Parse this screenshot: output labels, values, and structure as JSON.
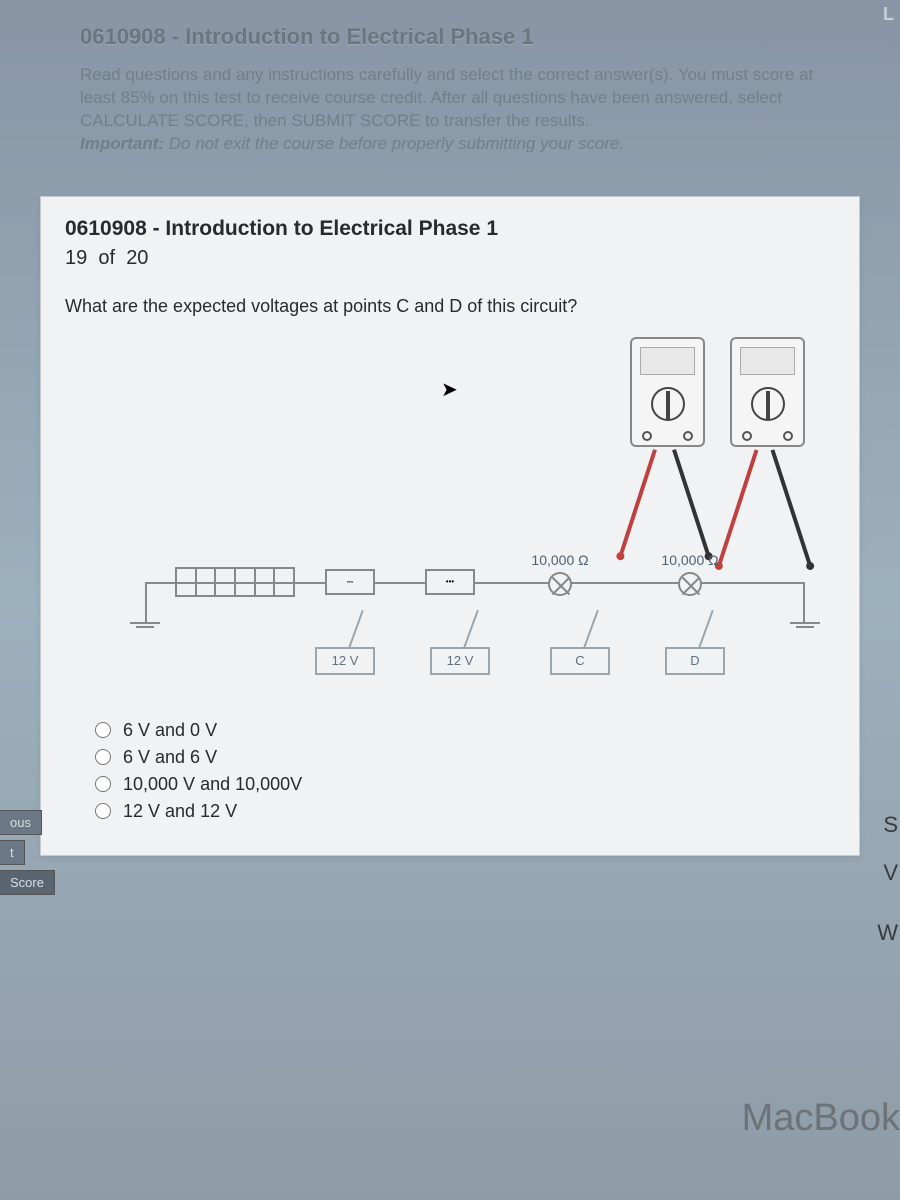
{
  "header": {
    "page_title": "0610908 - Introduction to Electrical Phase 1",
    "instructions_line1": "Read questions and any instructions carefully and select the correct answer(s). You must score at least 85% on this test to receive course credit. After all questions have been answered, select CALCULATE SCORE, then SUBMIT SCORE to transfer the results.",
    "instructions_important_label": "Important:",
    "instructions_important_text": "Do not exit the course before properly submitting your score."
  },
  "quiz": {
    "title": "0610908 - Introduction to Electrical Phase 1",
    "progress_current": "19",
    "progress_sep": "of",
    "progress_total": "20",
    "question": "What are the expected voltages at points C and D of this circuit?"
  },
  "diagram": {
    "resistor1_label": "10,000 Ω",
    "resistor2_label": "10,000 Ω",
    "label_box_1": "12 V",
    "label_box_2": "12 V",
    "label_box_3": "C",
    "label_box_4": "D"
  },
  "answers": {
    "a": "6 V and 0 V",
    "b": "6 V and 6 V",
    "c": "10,000 V and 10,000V",
    "d": "12 V and 12 V"
  },
  "side_tabs": {
    "t1": "ous",
    "t2": "t",
    "t3": "Score"
  },
  "right_letters": {
    "l1": "S",
    "l2": "V",
    "l3": "W"
  },
  "bottom_brand": "MacBook",
  "top_corner": "L"
}
